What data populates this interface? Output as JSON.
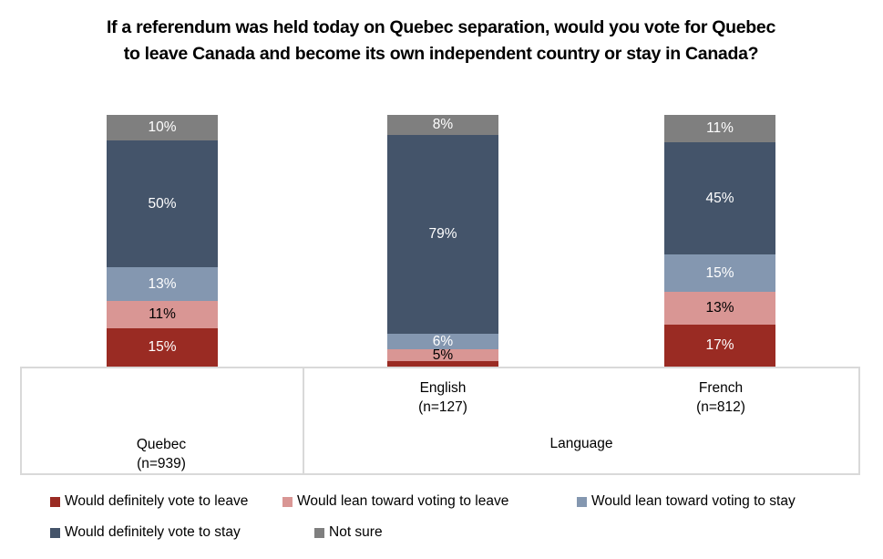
{
  "chart_data": {
    "type": "bar",
    "stacked": true,
    "orientation": "vertical",
    "title": "If a referendum was held today on Quebec separation, would you vote for Quebec to leave Canada and become its own independent country or stay in Canada?",
    "categories": [
      "Quebec (n=939)",
      "English (n=127)",
      "French (n=812)"
    ],
    "axis": {
      "categories": [
        {
          "line1": "Quebec",
          "line2": "(n=939)"
        },
        {
          "line1": "English",
          "line2": "(n=127)"
        },
        {
          "line1": "French",
          "line2": "(n=812)"
        }
      ],
      "group_label": "Language",
      "group_applies_to": [
        "English (n=127)",
        "French (n=812)"
      ]
    },
    "series": [
      {
        "id": "definitely-leave",
        "name": "Would definitely vote to leave",
        "color": "#9A2B23",
        "label_text_color": "#FFFFFF",
        "values": [
          15,
          2,
          17
        ],
        "labels": [
          "15%",
          "",
          "17%"
        ]
      },
      {
        "id": "lean-leave",
        "name": "Would lean toward voting to leave",
        "color": "#D99694",
        "label_text_color": "#000000",
        "values": [
          11,
          5,
          13
        ],
        "labels": [
          "11%",
          "5%",
          "13%"
        ]
      },
      {
        "id": "lean-stay",
        "name": "Would lean toward voting to stay",
        "color": "#8497B0",
        "label_text_color": "#FFFFFF",
        "values": [
          13,
          6,
          15
        ],
        "labels": [
          "13%",
          "6%",
          "15%"
        ]
      },
      {
        "id": "definitely-stay",
        "name": "Would definitely vote to stay",
        "color": "#44546A",
        "label_text_color": "#FFFFFF",
        "values": [
          50,
          79,
          45
        ],
        "labels": [
          "50%",
          "79%",
          "45%"
        ]
      },
      {
        "id": "not-sure",
        "name": "Not sure",
        "color": "#7F7F7F",
        "label_text_color": "#FFFFFF",
        "values": [
          10,
          8,
          11
        ],
        "labels": [
          "10%",
          "8%",
          "11%"
        ]
      }
    ],
    "value_unit": "percent",
    "ylim": [
      0,
      100
    ],
    "grid": false,
    "y_axis_visible": false,
    "legend_position": "bottom",
    "legend_rows": [
      [
        0,
        1,
        2
      ],
      [
        3,
        4
      ]
    ],
    "colors": {
      "axis_border": "#D9D9D9",
      "title_text": "#000000",
      "axis_text": "#000000"
    }
  }
}
